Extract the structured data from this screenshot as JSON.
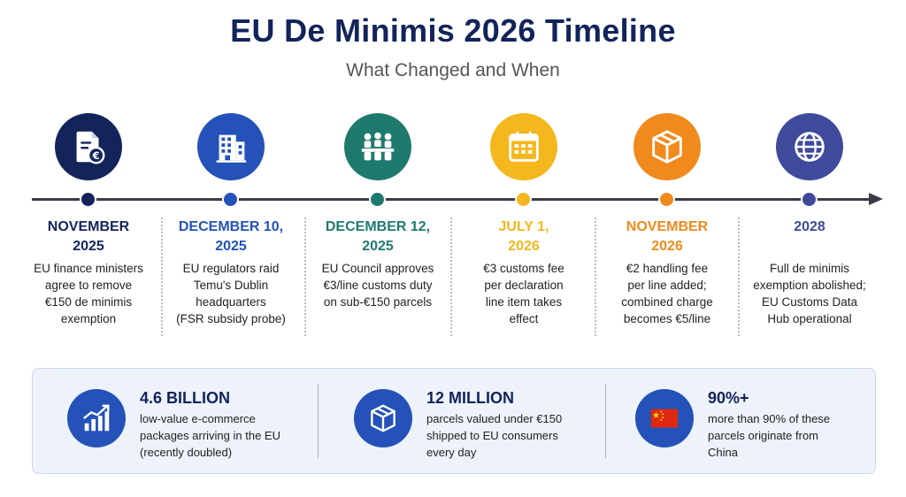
{
  "header": {
    "title": "EU De Minimis 2026 Timeline",
    "subtitle": "What Changed and When"
  },
  "colors": {
    "navy": "#13245a",
    "blue": "#2452b8",
    "teal": "#1f7a6e",
    "yellow": "#f4b71d",
    "orange": "#f08a1c",
    "indigo": "#3f4a9c"
  },
  "timeline": [
    {
      "date_line1": "NOVEMBER",
      "date_line2": "2025",
      "desc": [
        "EU finance ministers",
        "agree to remove",
        "€150 de minimis",
        "exemption"
      ],
      "icon": "document-euro-icon",
      "color": "#13245a"
    },
    {
      "date_line1": "DECEMBER 10,",
      "date_line2": "2025",
      "desc": [
        "EU regulators raid",
        "Temu's Dublin",
        "headquarters",
        "(FSR subsidy probe)"
      ],
      "icon": "building-icon",
      "color": "#2452b8"
    },
    {
      "date_line1": "DECEMBER 12,",
      "date_line2": "2025",
      "desc": [
        "EU Council approves",
        "€3/line customs duty",
        "on sub-€150 parcels"
      ],
      "icon": "council-meeting-icon",
      "color": "#1f7a6e"
    },
    {
      "date_line1": "JULY 1,",
      "date_line2": "2026",
      "desc": [
        "€3 customs fee",
        "per declaration",
        "line item takes",
        "effect"
      ],
      "icon": "calendar-icon",
      "color": "#f4b71d"
    },
    {
      "date_line1": "NOVEMBER",
      "date_line2": "2026",
      "desc": [
        "€2 handling fee",
        "per line added;",
        "combined charge",
        "becomes €5/line"
      ],
      "icon": "parcel-box-icon",
      "color": "#f08a1c"
    },
    {
      "date_line1": "2028",
      "date_line2": "",
      "desc": [
        "Full de minimis",
        "exemption abolished;",
        "EU Customs Data",
        "Hub operational"
      ],
      "icon": "globe-icon",
      "color": "#3f4a9c"
    }
  ],
  "stats": [
    {
      "value": "4.6 BILLION",
      "desc": [
        "low-value e-commerce",
        "packages arriving in the EU",
        "(recently doubled)"
      ],
      "icon": "growth-chart-icon"
    },
    {
      "value": "12 MILLION",
      "desc": [
        "parcels valued under €150",
        "shipped to EU consumers",
        "every day"
      ],
      "icon": "parcel-box-icon"
    },
    {
      "value": "90%+",
      "desc": [
        "more than 90% of these",
        "parcels originate from",
        "China"
      ],
      "icon": "china-flag-icon"
    }
  ]
}
